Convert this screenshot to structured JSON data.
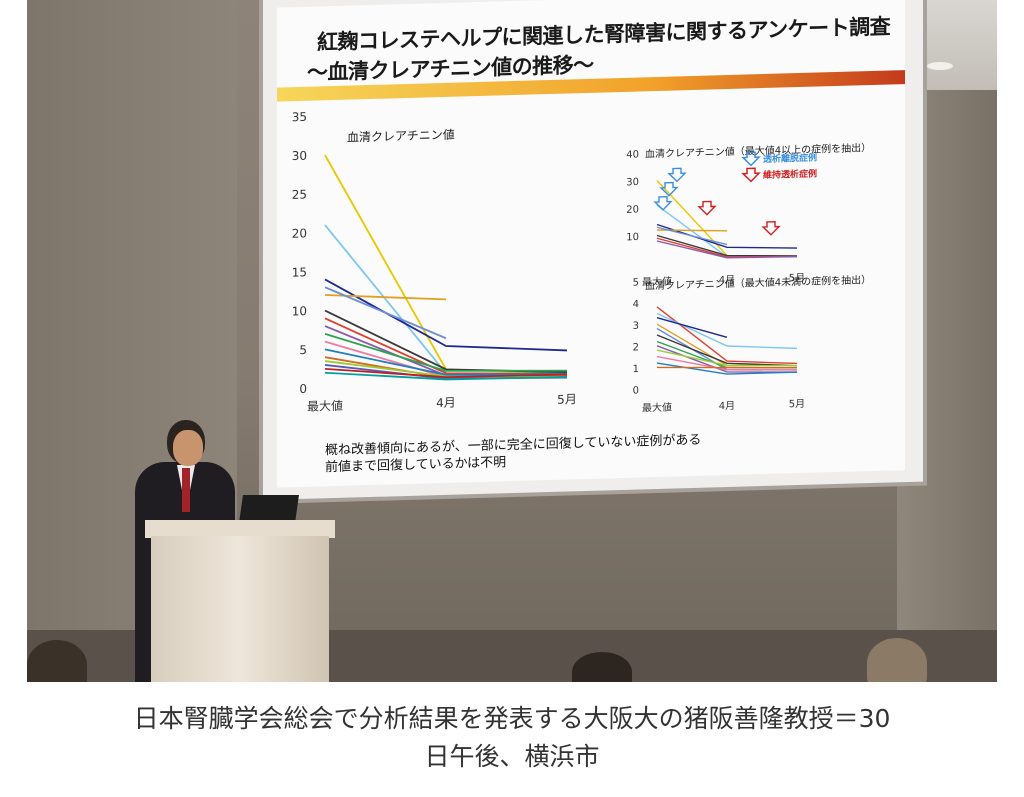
{
  "slide": {
    "title_line1": "紅麹コレステヘルプに関連した腎障害に関するアンケート調査",
    "title_line2": "～血清クレアチニン値の推移～",
    "conclusion_line1": "概ね改善傾向にあるが、一部に完全に回復していない症例がある",
    "conclusion_line2": "前値まで回復しているかは不明"
  },
  "chart_data": [
    {
      "type": "line",
      "title": "血清クレアチニン値",
      "categories": [
        "最大値",
        "4月",
        "5月"
      ],
      "ylim": [
        0,
        35
      ],
      "yticks": [
        "0",
        "5",
        "10",
        "15",
        "20",
        "25",
        "30",
        "35"
      ],
      "colors": [
        "#e8c900",
        "#7ec8f0",
        "#1f2a8f",
        "#e0a020",
        "#6b8fd6",
        "#3a3a3a",
        "#e04030",
        "#8a5ab0",
        "#2ea44f",
        "#f07aa0",
        "#1f7fbf",
        "#d46b1f",
        "#9acd32",
        "#5a5ab8",
        "#c02020",
        "#00a0a0"
      ],
      "series": [
        {
          "values": [
            30,
            2,
            1
          ]
        },
        {
          "values": [
            21,
            1.5,
            0.8
          ]
        },
        {
          "values": [
            14,
            5,
            4
          ]
        },
        {
          "values": [
            12,
            11,
            null
          ]
        },
        {
          "values": [
            13,
            6,
            null
          ]
        },
        {
          "values": [
            10,
            2,
            1.2
          ]
        },
        {
          "values": [
            9,
            1.5,
            1
          ]
        },
        {
          "values": [
            8,
            1.2,
            0.9
          ]
        },
        {
          "values": [
            7,
            1.8,
            1.4
          ]
        },
        {
          "values": [
            6,
            1,
            0.7
          ]
        },
        {
          "values": [
            5,
            1.3,
            1
          ]
        },
        {
          "values": [
            4,
            0.9,
            0.8
          ]
        },
        {
          "values": [
            3.5,
            1.1,
            0.6
          ]
        },
        {
          "values": [
            3,
            0.8,
            0.5
          ]
        },
        {
          "values": [
            2.5,
            1,
            0.9
          ]
        },
        {
          "values": [
            2,
            0.7,
            0.6
          ]
        }
      ]
    },
    {
      "type": "line",
      "title": "血清クレアチニン値（最大値4以上の症例を抽出）",
      "categories": [
        "最大値",
        "4月",
        "5月"
      ],
      "ylim": [
        0,
        40
      ],
      "yticks": [
        "10",
        "20",
        "30",
        "40"
      ],
      "legend": [
        {
          "label": "透析離脱症例",
          "color": "#3a8fe0"
        },
        {
          "label": "維持透析症例",
          "color": "#d02020"
        }
      ],
      "colors": [
        "#e8c900",
        "#7ec8f0",
        "#1f2a8f",
        "#e0a020",
        "#6b8fd6",
        "#3a3a3a",
        "#e04030",
        "#8a5ab0"
      ],
      "series": [
        {
          "values": [
            30,
            2,
            1
          ]
        },
        {
          "values": [
            21,
            1.5,
            0.8
          ]
        },
        {
          "values": [
            14,
            5,
            4
          ]
        },
        {
          "values": [
            12,
            11,
            null
          ]
        },
        {
          "values": [
            13,
            6,
            null
          ]
        },
        {
          "values": [
            10,
            2,
            1.2
          ]
        },
        {
          "values": [
            9,
            1.5,
            1
          ]
        },
        {
          "values": [
            8,
            1.2,
            0.9
          ]
        }
      ]
    },
    {
      "type": "line",
      "title": "血清クレアチニン値（最大値4未満の症例を抽出）",
      "categories": [
        "最大値",
        "4月",
        "5月"
      ],
      "ylim": [
        0,
        5
      ],
      "yticks": [
        "0",
        "1",
        "2",
        "3",
        "4",
        "5"
      ],
      "colors": [
        "#e04030",
        "#7ec8f0",
        "#1f2a8f",
        "#e0a020",
        "#6b8fd6",
        "#3a3a3a",
        "#2ea44f",
        "#8a5ab0",
        "#9acd32",
        "#f07aa0",
        "#1f7fbf",
        "#d46b1f"
      ],
      "series": [
        {
          "values": [
            3.8,
            1.2,
            1
          ]
        },
        {
          "values": [
            3.5,
            1.9,
            1.7
          ]
        },
        {
          "values": [
            3.3,
            2.3,
            null
          ]
        },
        {
          "values": [
            3,
            1,
            0.9
          ]
        },
        {
          "values": [
            2.8,
            0.8,
            0.7
          ]
        },
        {
          "values": [
            2.5,
            1.1,
            0.9
          ]
        },
        {
          "values": [
            2.2,
            0.9,
            0.8
          ]
        },
        {
          "values": [
            2,
            0.7,
            0.6
          ]
        },
        {
          "values": [
            1.8,
            1,
            0.9
          ]
        },
        {
          "values": [
            1.5,
            0.8,
            0.7
          ]
        },
        {
          "values": [
            1.2,
            0.6,
            0.6
          ]
        },
        {
          "values": [
            1,
            0.9,
            0.8
          ]
        }
      ]
    }
  ],
  "caption": {
    "line1": "日本腎臓学会総会で分析結果を発表する大阪大の猪阪善隆教授＝30",
    "line2": "日午後、横浜市"
  }
}
